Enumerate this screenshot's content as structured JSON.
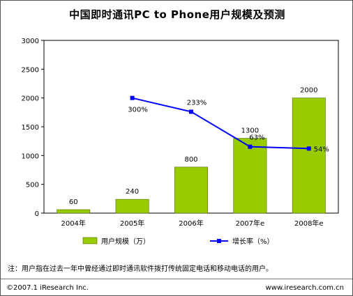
{
  "title": "中国即时通讯PC to Phone用户规模及预测",
  "note": "注：用户指在过去一年中曾经通过即时通讯软件拨打传统固定电话和移动电话的用户。",
  "footer": {
    "copyright": "©2007.1 iResearch Inc.",
    "website": "www.iresearch.com.cn"
  },
  "chart_data": {
    "type": "bar",
    "title": "中国即时通讯PC to Phone用户规模及预测",
    "categories": [
      "2004年",
      "2005年",
      "2006年",
      "2007年e",
      "2008年e"
    ],
    "series": [
      {
        "name": "用户规模（万）",
        "type": "bar",
        "axis": "left",
        "color": "#99cc00",
        "values": [
          60,
          240,
          800,
          1300,
          2000
        ],
        "labels": [
          "60",
          "240",
          "800",
          "1300",
          "2000"
        ]
      },
      {
        "name": "增长率（%）",
        "type": "line",
        "axis": "secondary",
        "color": "#0000ff",
        "values": [
          null,
          300,
          233,
          63,
          54
        ],
        "labels": [
          "",
          "300%",
          "233%",
          "63%",
          "54%"
        ]
      }
    ],
    "ylim": [
      0,
      3000
    ],
    "yticks": [
      0,
      500,
      1000,
      1500,
      2000,
      2500,
      3000
    ],
    "legend_position": "bottom",
    "grid": false
  }
}
